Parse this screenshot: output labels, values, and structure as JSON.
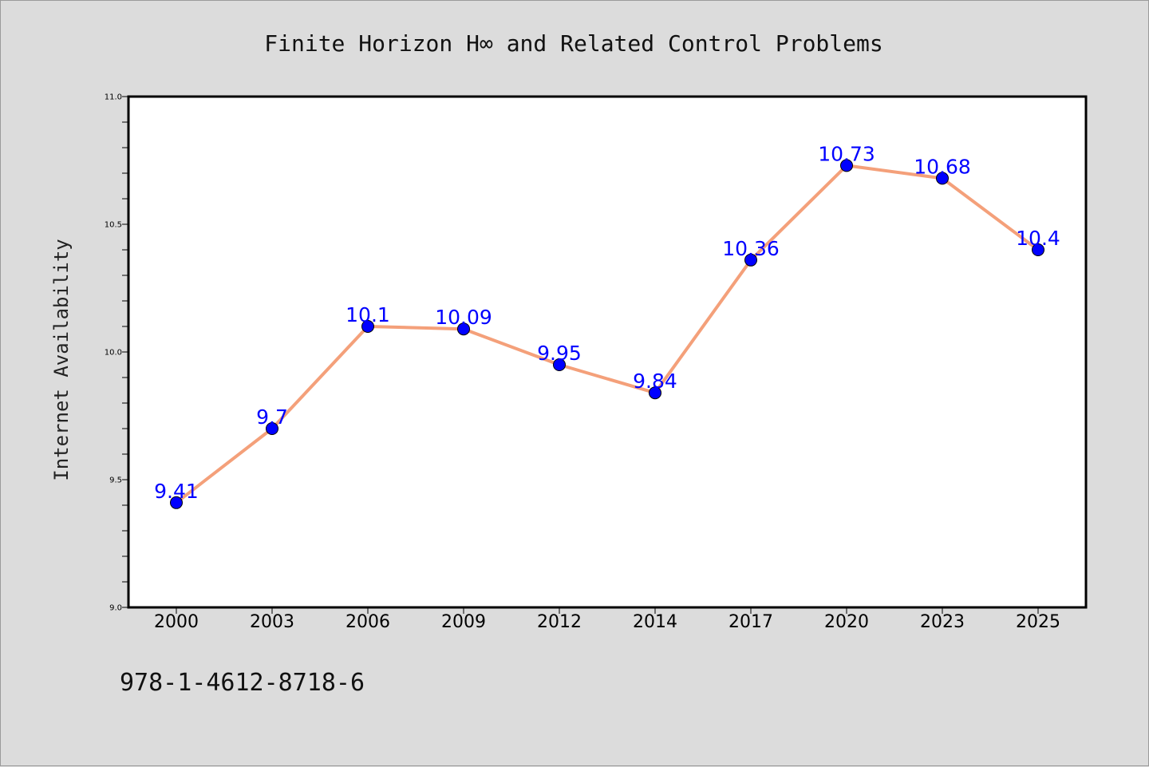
{
  "chart_data": {
    "type": "line",
    "title": "Finite Horizon H∞ and Related Control Problems",
    "xlabel": "",
    "ylabel": "Internet Availability",
    "categories": [
      "2000",
      "2003",
      "2006",
      "2009",
      "2012",
      "2014",
      "2017",
      "2020",
      "2023",
      "2025"
    ],
    "series": [
      {
        "values": [
          9.41,
          9.7,
          10.1,
          10.09,
          9.95,
          9.84,
          10.36,
          10.73,
          10.68,
          10.4
        ],
        "data_labels": [
          "9.41",
          "9.7",
          "10.1",
          "10.09",
          "9.95",
          "9.84",
          "10.36",
          "10.73",
          "10.68",
          "10.4"
        ]
      }
    ],
    "ylim": [
      9.0,
      11.0
    ],
    "yticks": [
      "9.0",
      "9.5",
      "10.0",
      "10.5",
      "11.0"
    ],
    "grid": false,
    "colors": {
      "line": "#f4a07a",
      "marker": "#0000ff",
      "data_label": "#0000ff",
      "background": "#dcdcdc",
      "plot_background": "#ffffff"
    }
  },
  "footer": {
    "isbn": "978-1-4612-8718-6"
  }
}
